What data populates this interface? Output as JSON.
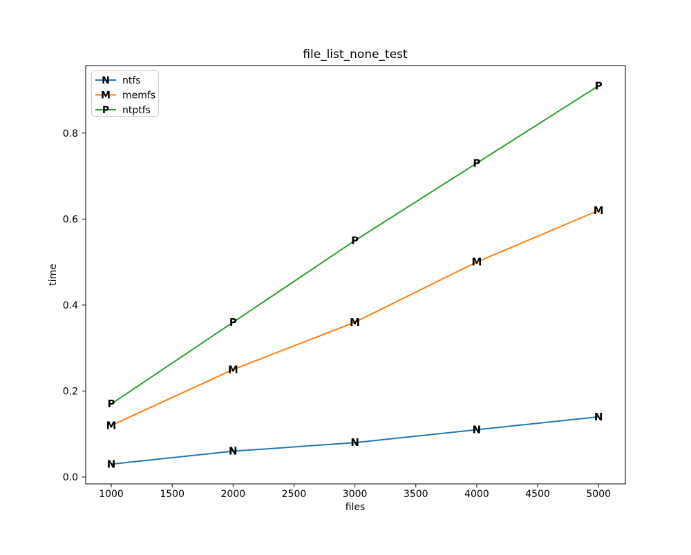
{
  "chart_data": {
    "type": "line",
    "title": "file_list_none_test",
    "xlabel": "files",
    "ylabel": "time",
    "x": [
      1000,
      2000,
      3000,
      4000,
      5000
    ],
    "series": [
      {
        "name": "ntfs",
        "marker": "N",
        "color": "#1f77b4",
        "values": [
          0.03,
          0.06,
          0.08,
          0.11,
          0.14
        ]
      },
      {
        "name": "memfs",
        "marker": "M",
        "color": "#ff7f0e",
        "values": [
          0.12,
          0.25,
          0.36,
          0.5,
          0.62
        ]
      },
      {
        "name": "ntptfs",
        "marker": "P",
        "color": "#2ca02c",
        "values": [
          0.17,
          0.36,
          0.55,
          0.73,
          0.91
        ]
      }
    ],
    "xlim": [
      790,
      5220
    ],
    "ylim": [
      -0.016,
      0.957
    ],
    "xticks": [
      1000,
      1500,
      2000,
      2500,
      3000,
      3500,
      4000,
      4500,
      5000
    ],
    "xtick_labels": [
      "1000",
      "1500",
      "2000",
      "2500",
      "3000",
      "3500",
      "4000",
      "4500",
      "5000"
    ],
    "yticks": [
      0.0,
      0.2,
      0.4,
      0.6,
      0.8
    ],
    "ytick_labels": [
      "0.0",
      "0.2",
      "0.4",
      "0.6",
      "0.8"
    ],
    "grid": false,
    "legend_position": "upper left",
    "legend_items": [
      "ntfs",
      "memfs",
      "ntptfs"
    ],
    "colors": {
      "background": "#ffffff",
      "spine": "#000000",
      "text": "#000000",
      "legend_edge": "#cccccc"
    }
  }
}
